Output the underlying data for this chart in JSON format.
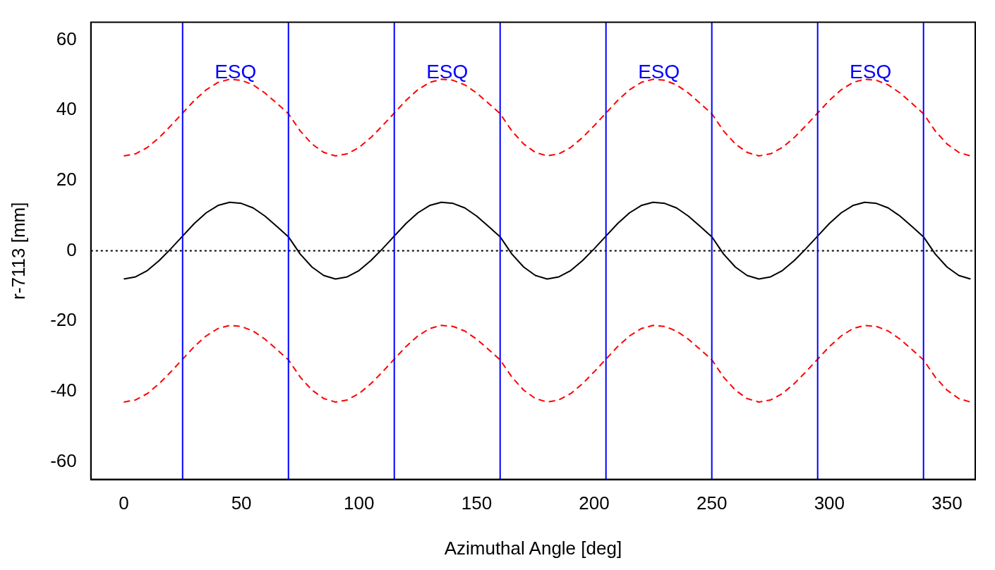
{
  "chart_data": {
    "type": "line",
    "xlabel": "Azimuthal Angle [deg]",
    "ylabel": "r-7113 [mm]",
    "x": [
      0,
      5,
      10,
      15,
      20,
      25,
      30,
      35,
      40,
      45,
      50,
      55,
      60,
      65,
      70,
      75,
      80,
      85,
      90,
      95,
      100,
      105,
      110,
      115,
      120,
      125,
      130,
      135,
      140,
      145,
      150,
      155,
      160,
      165,
      170,
      175,
      180,
      185,
      190,
      195,
      200,
      205,
      210,
      215,
      220,
      225,
      230,
      235,
      240,
      245,
      250,
      255,
      260,
      265,
      270,
      275,
      280,
      285,
      290,
      295,
      300,
      305,
      310,
      315,
      320,
      325,
      330,
      335,
      340,
      345,
      350,
      355,
      360
    ],
    "xlim": [
      -14,
      362
    ],
    "xticks": [
      0,
      50,
      100,
      150,
      200,
      250,
      300,
      350
    ],
    "ylim": [
      -65,
      65
    ],
    "yticks": [
      -60,
      -40,
      -20,
      0,
      20,
      40,
      60
    ],
    "grid": false,
    "legend": false,
    "marker": "none",
    "series": [
      {
        "color": "#000000",
        "line_style": "solid",
        "values": [
          -8,
          -7.4,
          -5.6,
          -2.8,
          0.6,
          4.2,
          7.8,
          10.8,
          12.9,
          13.8,
          13.5,
          12.2,
          9.9,
          7.0,
          4.0,
          -0.9,
          -4.6,
          -7.0,
          -8,
          -7.4,
          -5.6,
          -2.8,
          0.6,
          4.2,
          7.8,
          10.8,
          12.9,
          13.8,
          13.5,
          12.2,
          9.9,
          7.0,
          4.0,
          -0.9,
          -4.6,
          -7.0,
          -8,
          -7.4,
          -5.6,
          -2.8,
          0.6,
          4.2,
          7.8,
          10.8,
          12.9,
          13.8,
          13.5,
          12.2,
          9.9,
          7.0,
          4.0,
          -0.9,
          -4.6,
          -7.0,
          -8,
          -7.4,
          -5.6,
          -2.8,
          0.6,
          4.2,
          7.8,
          10.8,
          12.9,
          13.8,
          13.5,
          12.2,
          9.9,
          7.0,
          4.0,
          -0.9,
          -4.6,
          -7.0,
          -8
        ]
      },
      {
        "color": "#ff0000",
        "line_style": "dashed",
        "values": [
          27,
          27.6,
          29.4,
          32.2,
          35.6,
          39.2,
          42.8,
          45.8,
          47.9,
          48.8,
          48.5,
          47.2,
          44.9,
          42,
          39,
          34.1,
          30.4,
          28,
          27,
          27.6,
          29.4,
          32.2,
          35.6,
          39.2,
          42.8,
          45.8,
          47.9,
          48.8,
          48.5,
          47.2,
          44.9,
          42,
          39,
          34.1,
          30.4,
          28,
          27,
          27.6,
          29.4,
          32.2,
          35.6,
          39.2,
          42.8,
          45.8,
          47.9,
          48.8,
          48.5,
          47.2,
          44.9,
          42,
          39,
          34.1,
          30.4,
          28,
          27,
          27.6,
          29.4,
          32.2,
          35.6,
          39.2,
          42.8,
          45.8,
          47.9,
          48.8,
          48.5,
          47.2,
          44.9,
          42,
          39,
          34.1,
          30.4,
          28,
          27
        ]
      },
      {
        "color": "#ff0000",
        "line_style": "dashed",
        "values": [
          -43,
          -42.4,
          -40.6,
          -37.8,
          -34.4,
          -30.8,
          -27.2,
          -24.2,
          -22.1,
          -21.2,
          -21.5,
          -22.8,
          -25.1,
          -28,
          -31,
          -35.9,
          -39.6,
          -42,
          -43,
          -42.4,
          -40.6,
          -37.8,
          -34.4,
          -30.8,
          -27.2,
          -24.2,
          -22.1,
          -21.2,
          -21.5,
          -22.8,
          -25.1,
          -28,
          -31,
          -35.9,
          -39.6,
          -42,
          -43,
          -42.4,
          -40.6,
          -37.8,
          -34.4,
          -30.8,
          -27.2,
          -24.2,
          -22.1,
          -21.2,
          -21.5,
          -22.8,
          -25.1,
          -28,
          -31,
          -35.9,
          -39.6,
          -42,
          -43,
          -42.4,
          -40.6,
          -37.8,
          -34.4,
          -30.8,
          -27.2,
          -24.2,
          -22.1,
          -21.2,
          -21.5,
          -22.8,
          -25.1,
          -28,
          -31,
          -35.9,
          -39.6,
          -42,
          -43
        ]
      }
    ],
    "ref_lines": [
      {
        "axis": "y",
        "value": 0,
        "color": "#000000",
        "line_style": "dotted"
      },
      {
        "axis": "x",
        "value": 25,
        "color": "#0000ff"
      },
      {
        "axis": "x",
        "value": 70,
        "color": "#0000ff"
      },
      {
        "axis": "x",
        "value": 115,
        "color": "#0000ff"
      },
      {
        "axis": "x",
        "value": 160,
        "color": "#0000ff"
      },
      {
        "axis": "x",
        "value": 205,
        "color": "#0000ff"
      },
      {
        "axis": "x",
        "value": 250,
        "color": "#0000ff"
      },
      {
        "axis": "x",
        "value": 295,
        "color": "#0000ff"
      },
      {
        "axis": "x",
        "value": 340,
        "color": "#0000ff"
      }
    ],
    "annotations": [
      "ESQ",
      "ESQ",
      "ESQ",
      "ESQ"
    ]
  }
}
